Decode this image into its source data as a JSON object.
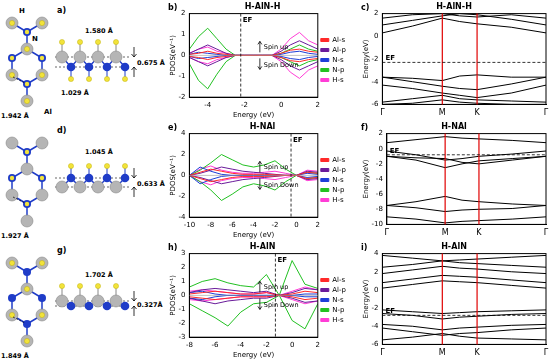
{
  "structures": [
    {
      "panel_label": "a)",
      "atom_labels": [
        "H",
        "N",
        "Al"
      ],
      "top_view_label": "1.942 Å",
      "side_view_labels": [
        "1.580 Å",
        "1.029 Å"
      ],
      "buckling_label": "0.675 Å"
    },
    {
      "panel_label": "d)",
      "top_view_label": "1.927 Å",
      "side_view_labels": [
        "1.045 Å"
      ],
      "buckling_label": "0.633 Å"
    },
    {
      "panel_label": "g)",
      "top_view_label": "1.849 Å",
      "side_view_labels": [
        "1.702 Å"
      ],
      "buckling_label": "0.327Å"
    }
  ],
  "chart_data": [
    {
      "type": "line",
      "panel_label": "b)",
      "title": "H-AlN-H",
      "x_label": "Energy (eV)",
      "y_label": "PDOS(eV⁻¹)",
      "x": [
        -5,
        -4.5,
        -4,
        -3.5,
        -3,
        -2.5,
        -2,
        -1.5,
        -1,
        -0.5,
        0,
        0.5,
        1,
        1.5,
        2
      ],
      "xlim": [
        -5,
        2
      ],
      "xticks": [
        -4,
        -2,
        0,
        2
      ],
      "ylim": [
        -2,
        2
      ],
      "yticks": [
        -2,
        -1,
        0,
        1,
        2
      ],
      "grid": false,
      "legend": "right",
      "annotations": [
        {
          "text": "EF",
          "x": -2.2
        }
      ],
      "spin_labels": [
        "Spin up",
        "Spin Down"
      ],
      "series": [
        {
          "name": "Al-s",
          "color": "#ff2a2a",
          "values": [
            0.05,
            0.1,
            0.2,
            0.1,
            0.05,
            0,
            0,
            0,
            0,
            0,
            0.1,
            0.25,
            0.3,
            0.2,
            0.15
          ],
          "spin_down_values": [
            -0.05,
            -0.1,
            -0.2,
            -0.1,
            -0.05,
            0,
            0,
            0,
            0,
            0,
            -0.1,
            -0.25,
            -0.3,
            -0.2,
            -0.15
          ]
        },
        {
          "name": "Al-p",
          "color": "#6a1b9a",
          "values": [
            0.1,
            0.3,
            0.5,
            0.3,
            0.1,
            0,
            0,
            0,
            0,
            0,
            0.2,
            0.5,
            0.7,
            0.5,
            0.3
          ],
          "spin_down_values": [
            -0.1,
            -0.3,
            -0.5,
            -0.3,
            -0.1,
            0,
            0,
            0,
            0,
            0,
            -0.2,
            -0.5,
            -0.7,
            -0.5,
            -0.3
          ]
        },
        {
          "name": "N-s",
          "color": "#1e3fd8",
          "values": [
            0.05,
            0.15,
            0.1,
            0.05,
            0,
            0,
            0,
            0,
            0,
            0,
            0.05,
            0.15,
            0.2,
            0.1,
            0.05
          ],
          "spin_down_values": [
            -0.05,
            -0.15,
            -0.1,
            -0.05,
            0,
            0,
            0,
            0,
            0,
            0,
            -0.05,
            -0.15,
            -0.2,
            -0.1,
            -0.05
          ]
        },
        {
          "name": "N-p",
          "color": "#22c022",
          "values": [
            0.3,
            0.9,
            1.3,
            0.8,
            0.3,
            0,
            0,
            0,
            0,
            0,
            0.1,
            0.3,
            0.5,
            0.3,
            0.2
          ],
          "spin_down_values": [
            -0.4,
            -1.2,
            -1.6,
            -0.9,
            -0.3,
            0,
            0,
            0,
            0,
            0,
            -0.1,
            -0.3,
            -0.5,
            -0.3,
            -0.2
          ]
        },
        {
          "name": "H-s",
          "color": "#ff3dd6",
          "values": [
            0.1,
            0.3,
            0.4,
            0.2,
            0.1,
            0,
            0,
            0,
            0,
            0,
            0.3,
            0.8,
            1.1,
            0.7,
            0.5
          ],
          "spin_down_values": [
            -0.1,
            -0.3,
            -0.4,
            -0.2,
            -0.1,
            0,
            0,
            0,
            0,
            0,
            -0.3,
            -0.8,
            -1.1,
            -0.7,
            -0.5
          ]
        }
      ]
    },
    {
      "type": "line",
      "panel_label": "c)",
      "title": "H-AlN-H",
      "y_label": "Energy(eV)",
      "x": [
        0,
        0.5,
        1,
        1.29,
        1.58,
        2.15,
        2.73
      ],
      "xlim": [
        0,
        2.73
      ],
      "xticks": [
        {
          "value": 0,
          "label": "Γ"
        },
        {
          "value": 1,
          "label": "M"
        },
        {
          "value": 1.58,
          "label": "K"
        },
        {
          "value": 2.73,
          "label": "Γ"
        }
      ],
      "ylim": [
        -6,
        2
      ],
      "yticks": [
        -6,
        -4,
        -2,
        0,
        2
      ],
      "grid": false,
      "color": "#000000",
      "annotations": [
        {
          "text": "EF",
          "y": -2.3
        }
      ],
      "series": [
        {
          "values": [
            0.3,
            0.9,
            1.6,
            1.3,
            1.1,
            0.8,
            0.3
          ]
        },
        {
          "values": [
            1.6,
            1.9,
            2.0,
            1.8,
            1.7,
            1.9,
            1.6
          ]
        },
        {
          "values": [
            1.0,
            1.4,
            1.8,
            2.0,
            1.9,
            1.5,
            1.0
          ]
        },
        {
          "values": [
            -3.6,
            -3.7,
            -3.9,
            -3.5,
            -3.4,
            -3.6,
            -3.6
          ]
        },
        {
          "values": [
            -3.6,
            -4.0,
            -4.4,
            -4.6,
            -4.7,
            -4.2,
            -3.6
          ]
        },
        {
          "values": [
            -4.3,
            -4.6,
            -5.0,
            -5.2,
            -5.4,
            -5.0,
            -4.3
          ]
        },
        {
          "values": [
            -5.8,
            -5.5,
            -5.2,
            -5.5,
            -5.6,
            -5.7,
            -5.8
          ]
        },
        {
          "values": [
            -6.0,
            -5.9,
            -5.6,
            -5.8,
            -5.9,
            -6.0,
            -6.0
          ]
        }
      ]
    },
    {
      "type": "line",
      "panel_label": "e)",
      "title": "H-NAl",
      "x_label": "Energy (eV)",
      "y_label": "PDOS(eV⁻¹)",
      "x": [
        -10,
        -9,
        -8,
        -7,
        -6,
        -5,
        -4,
        -3,
        -2,
        -1,
        0,
        1,
        2
      ],
      "xlim": [
        -10,
        2
      ],
      "xticks": [
        -10,
        -8,
        -6,
        -4,
        -2,
        0,
        2
      ],
      "ylim": [
        -4,
        4
      ],
      "yticks": [
        -4,
        -2,
        0,
        2,
        4
      ],
      "grid": false,
      "legend": "right",
      "annotations": [
        {
          "text": "EF",
          "x": -0.5
        }
      ],
      "spin_labels": [
        "Spin up",
        "Spin Down"
      ],
      "series": [
        {
          "name": "Al-s",
          "color": "#ff2a2a",
          "values": [
            0,
            0.3,
            0.6,
            0.4,
            0.2,
            0.1,
            0.1,
            0.1,
            0.05,
            0,
            0,
            0.3,
            0.2
          ],
          "spin_down_values": [
            0,
            -0.3,
            -0.6,
            -0.4,
            -0.2,
            -0.1,
            -0.1,
            -0.1,
            -0.05,
            0,
            0,
            -0.3,
            -0.2
          ]
        },
        {
          "name": "Al-p",
          "color": "#6a1b9a",
          "values": [
            0,
            0.2,
            0.5,
            0.8,
            0.6,
            0.4,
            0.3,
            0.2,
            0.1,
            0,
            0,
            0.4,
            0.3
          ],
          "spin_down_values": [
            0,
            -0.2,
            -0.5,
            -0.8,
            -0.6,
            -0.4,
            -0.3,
            -0.2,
            -0.1,
            0,
            0,
            -0.4,
            -0.3
          ]
        },
        {
          "name": "N-s",
          "color": "#1e3fd8",
          "values": [
            0,
            0.8,
            0.4,
            0.1,
            0,
            0,
            0,
            0,
            0,
            0,
            0,
            0.2,
            0.1
          ],
          "spin_down_values": [
            0,
            -0.8,
            -0.4,
            -0.1,
            0,
            0,
            0,
            0,
            0,
            0,
            0,
            -0.2,
            -0.1
          ]
        },
        {
          "name": "N-p",
          "color": "#22c022",
          "values": [
            0,
            0.5,
            1.2,
            2.0,
            1.5,
            1.0,
            0.8,
            1.0,
            1.4,
            0.6,
            0,
            0.3,
            0.2
          ],
          "spin_down_values": [
            0,
            -0.6,
            -1.4,
            -2.4,
            -1.8,
            -1.1,
            -0.8,
            -1.0,
            -1.4,
            -0.6,
            0,
            -0.3,
            -0.2
          ]
        },
        {
          "name": "H-s",
          "color": "#ff3dd6",
          "values": [
            0,
            0.6,
            0.9,
            0.5,
            0.3,
            0.2,
            0.2,
            0.3,
            0.4,
            0.2,
            0,
            0.5,
            0.4
          ],
          "spin_down_values": [
            0,
            -0.6,
            -0.9,
            -0.5,
            -0.3,
            -0.2,
            -0.2,
            -0.3,
            -0.4,
            -0.2,
            0,
            -0.5,
            -0.4
          ]
        }
      ]
    },
    {
      "type": "line",
      "panel_label": "f)",
      "title": "H-NAl",
      "y_label": "Energy(eV)",
      "x": [
        0,
        0.5,
        1,
        1.29,
        1.58,
        2.15,
        2.73
      ],
      "xlim": [
        0,
        2.73
      ],
      "xticks": [
        {
          "value": 0,
          "label": "Γ"
        },
        {
          "value": 1,
          "label": "M"
        },
        {
          "value": 1.58,
          "label": "K"
        },
        {
          "value": 2.73,
          "label": "Γ"
        }
      ],
      "ylim": [
        -10,
        2
      ],
      "yticks": [
        -10,
        -8,
        -6,
        -4,
        -2,
        0,
        2
      ],
      "grid": false,
      "color": "#000000",
      "annotations": [
        {
          "text": "EF",
          "y": -0.8
        }
      ],
      "series": [
        {
          "values": [
            -0.3,
            -0.8,
            -1.5,
            -1.3,
            -1.0,
            -0.7,
            -0.3
          ]
        },
        {
          "values": [
            -1.0,
            -1.5,
            -2.5,
            -2.0,
            -1.6,
            -1.3,
            -1.0
          ]
        },
        {
          "values": [
            -1.0,
            -1.2,
            -1.3,
            -1.8,
            -2.0,
            -1.5,
            -1.0
          ]
        },
        {
          "values": [
            0.8,
            1.2,
            1.6,
            1.4,
            1.3,
            1.1,
            0.8
          ]
        },
        {
          "values": [
            -7.5,
            -7.0,
            -6.3,
            -6.8,
            -7.0,
            -7.3,
            -7.5
          ]
        },
        {
          "values": [
            -7.5,
            -7.8,
            -8.3,
            -8.1,
            -8.0,
            -7.9,
            -7.5
          ]
        },
        {
          "values": [
            -9.0,
            -9.3,
            -9.8,
            -9.6,
            -9.5,
            -9.3,
            -9.0
          ]
        }
      ]
    },
    {
      "type": "line",
      "panel_label": "h)",
      "title": "H-AlN",
      "x_label": "Energy (eV)",
      "y_label": "PDOS(eV⁻¹)",
      "x": [
        -8,
        -7,
        -6,
        -5,
        -4,
        -3,
        -2,
        -1,
        0,
        1,
        2
      ],
      "xlim": [
        -8,
        2
      ],
      "xticks": [
        -8,
        -6,
        -4,
        -2,
        0,
        2
      ],
      "ylim": [
        -3,
        3
      ],
      "yticks": [
        -3,
        -2,
        -1,
        0,
        1,
        2,
        3
      ],
      "grid": false,
      "legend": "right",
      "annotations": [
        {
          "text": "EF",
          "x": -1.3
        }
      ],
      "spin_labels": [
        "Spin up",
        "Spin Down"
      ],
      "series": [
        {
          "name": "Al-s",
          "color": "#ff2a2a",
          "values": [
            0.1,
            0.2,
            0.3,
            0.2,
            0.1,
            0.1,
            0.2,
            0,
            0.1,
            0.3,
            0.2
          ],
          "spin_down_values": [
            -0.1,
            -0.2,
            -0.3,
            -0.2,
            -0.1,
            -0.1,
            -0.1,
            0,
            -0.1,
            -0.3,
            -0.2
          ]
        },
        {
          "name": "Al-p",
          "color": "#6a1b9a",
          "values": [
            0.2,
            0.4,
            0.5,
            0.4,
            0.3,
            0.2,
            0.3,
            0,
            0.2,
            0.5,
            0.4
          ],
          "spin_down_values": [
            -0.2,
            -0.4,
            -0.6,
            -0.4,
            -0.3,
            -0.2,
            -0.2,
            0,
            -0.2,
            -0.5,
            -0.4
          ]
        },
        {
          "name": "N-s",
          "color": "#1e3fd8",
          "values": [
            0.2,
            0.3,
            0.1,
            0,
            0,
            0,
            0,
            0,
            0,
            0.1,
            0.1
          ],
          "spin_down_values": [
            -0.2,
            -0.3,
            -0.1,
            0,
            0,
            0,
            0,
            0,
            0,
            -0.1,
            -0.1
          ]
        },
        {
          "name": "N-p",
          "color": "#22c022",
          "values": [
            0.6,
            1.0,
            1.2,
            0.9,
            0.7,
            0.6,
            1.5,
            0,
            2.5,
            0.8,
            0.5
          ],
          "spin_down_values": [
            -0.6,
            -1.1,
            -1.6,
            -2.2,
            -1.2,
            -0.6,
            -0.5,
            0,
            -1.8,
            -2.4,
            -0.6
          ]
        },
        {
          "name": "H-s",
          "color": "#ff3dd6",
          "values": [
            0.3,
            0.4,
            0.3,
            0.2,
            0.1,
            0.1,
            0.2,
            0,
            0.3,
            0.6,
            0.4
          ],
          "spin_down_values": [
            -0.3,
            -0.4,
            -0.3,
            -0.2,
            -0.1,
            -0.1,
            -0.1,
            0,
            -0.3,
            -0.6,
            -0.4
          ]
        }
      ]
    },
    {
      "type": "line",
      "panel_label": "i)",
      "title": "H-AlN",
      "y_label": "Energy(eV)",
      "x": [
        0,
        0.5,
        1,
        1.29,
        1.58,
        2.15,
        2.73
      ],
      "xlim": [
        0,
        2.73
      ],
      "xticks": [
        {
          "value": 0,
          "label": "Γ"
        },
        {
          "value": 1,
          "label": "M"
        },
        {
          "value": 1.58,
          "label": "K"
        },
        {
          "value": 2.73,
          "label": "Γ"
        }
      ],
      "ylim": [
        -6,
        4
      ],
      "yticks": [
        -6,
        -4,
        -2,
        0,
        2,
        4
      ],
      "grid": false,
      "color": "#000000",
      "annotations": [
        {
          "text": "EF",
          "y": -2.8
        }
      ],
      "series": [
        {
          "values": [
            3.8,
            3.5,
            3.2,
            3.3,
            3.4,
            3.6,
            3.8
          ]
        },
        {
          "values": [
            2.5,
            2.8,
            3.2,
            3.0,
            2.9,
            2.7,
            2.5
          ]
        },
        {
          "values": [
            1.8,
            2.2,
            2.6,
            2.4,
            2.3,
            2.0,
            1.8
          ]
        },
        {
          "values": [
            0.8,
            1.2,
            1.6,
            1.5,
            1.4,
            1.1,
            0.8
          ]
        },
        {
          "values": [
            0.2,
            0.6,
            1.0,
            0.9,
            0.8,
            0.5,
            0.2
          ]
        },
        {
          "values": [
            -2.2,
            -2.4,
            -2.6,
            -2.5,
            -2.4,
            -2.3,
            -2.2
          ]
        },
        {
          "values": [
            -2.6,
            -2.8,
            -3.2,
            -3.0,
            -2.9,
            -2.7,
            -2.6
          ]
        },
        {
          "values": [
            -3.8,
            -4.0,
            -4.4,
            -4.2,
            -4.1,
            -3.9,
            -3.8
          ]
        },
        {
          "values": [
            -4.2,
            -4.6,
            -5.0,
            -4.8,
            -4.7,
            -4.4,
            -4.2
          ]
        },
        {
          "values": [
            -5.5,
            -5.2,
            -4.8,
            -5.1,
            -5.3,
            -5.4,
            -5.5
          ]
        }
      ]
    }
  ]
}
